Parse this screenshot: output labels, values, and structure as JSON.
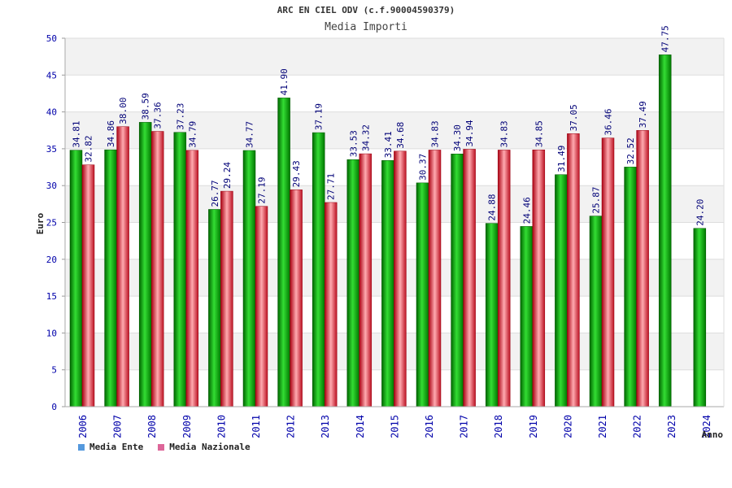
{
  "chart_data": {
    "type": "bar",
    "title": "ARC EN CIEL ODV (c.f.90004590379)",
    "subtitle": "Media Importi",
    "xlabel": "Anno",
    "ylabel": "Euro",
    "ylim": [
      0,
      50
    ],
    "yticks": [
      "0",
      "5",
      "10",
      "15",
      "20",
      "25",
      "30",
      "35",
      "40",
      "45",
      "50"
    ],
    "categories": [
      "2006",
      "2007",
      "2008",
      "2009",
      "2010",
      "2011",
      "2012",
      "2013",
      "2014",
      "2015",
      "2016",
      "2017",
      "2018",
      "2019",
      "2020",
      "2021",
      "2022",
      "2023",
      "2024"
    ],
    "series": [
      {
        "name": "Media Ente",
        "color": "#00aa00",
        "values": [
          34.81,
          34.86,
          38.59,
          37.23,
          26.77,
          34.77,
          41.9,
          37.19,
          33.53,
          33.41,
          30.37,
          34.3,
          24.88,
          24.46,
          31.49,
          25.87,
          32.52,
          47.75,
          24.2
        ],
        "labels": [
          "34.81",
          "34.86",
          "38.59",
          "37.23",
          "26.77",
          "34.77",
          "41.90",
          "37.19",
          "33.53",
          "33.41",
          "30.37",
          "34.30",
          "24.88",
          "24.46",
          "31.49",
          "25.87",
          "32.52",
          "47.75",
          "24.20"
        ]
      },
      {
        "name": "Media Nazionale",
        "color": "#dd2233",
        "values": [
          32.82,
          38.0,
          37.36,
          34.79,
          29.24,
          27.19,
          29.43,
          27.71,
          34.32,
          34.68,
          34.83,
          34.94,
          34.83,
          34.85,
          37.05,
          36.46,
          37.49,
          null,
          null
        ],
        "labels": [
          "32.82",
          "38.00",
          "37.36",
          "34.79",
          "29.24",
          "27.19",
          "29.43",
          "27.71",
          "34.32",
          "34.68",
          "34.83",
          "34.94",
          "34.83",
          "34.85",
          "37.05",
          "36.46",
          "37.49",
          "",
          ""
        ]
      }
    ],
    "grid": true,
    "legend_position": "bottom-left"
  },
  "legend": {
    "ente_label": "Media Ente",
    "ente_color": "#5599dd",
    "nazionale_label": "Media Nazionale",
    "nazionale_color": "#dd6699"
  }
}
